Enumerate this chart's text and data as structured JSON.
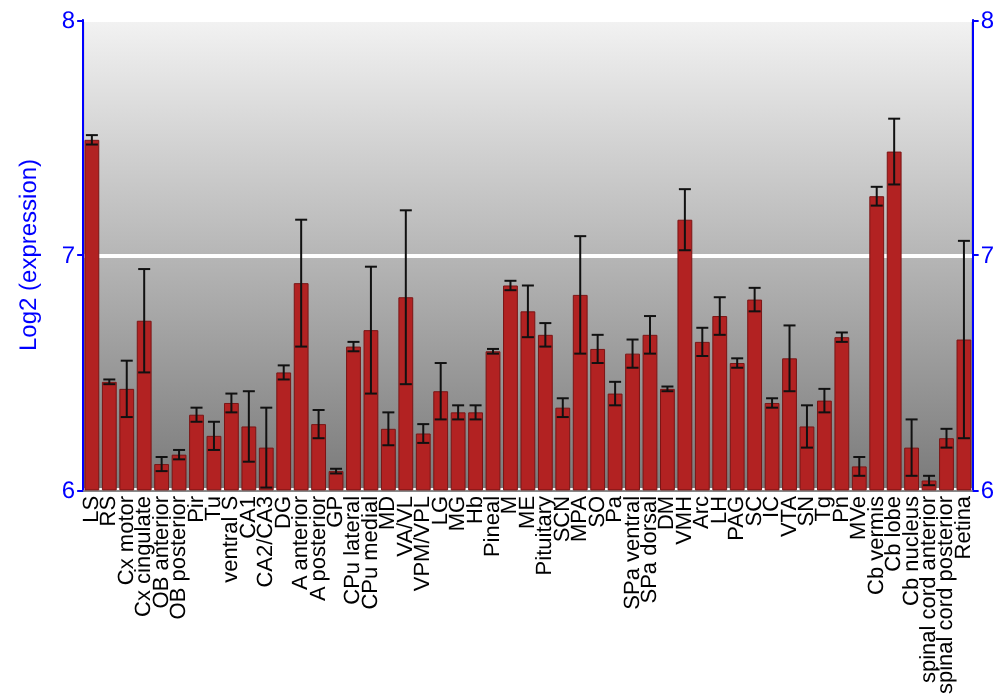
{
  "chart_data": {
    "type": "bar",
    "ylabel": "Log2 (expression)",
    "categories": [
      "LS",
      "RS",
      "Cx motor",
      "Cx cingulate",
      "OB anterior",
      "OB posterior",
      "Pir",
      "Tu",
      "ventral S",
      "CA1",
      "CA2/CA3",
      "DG",
      "A anterior",
      "A posterior",
      "GP",
      "CPu lateral",
      "CPu medial",
      "MD",
      "VA/VL",
      "VPM/VPL",
      "LG",
      "MG",
      "Hb",
      "Pineal",
      "M",
      "ME",
      "Pituitary",
      "SCN",
      "MPA",
      "SO",
      "Pa",
      "SPa ventral",
      "SPa dorsal",
      "DM",
      "VMH",
      "Arc",
      "LH",
      "PAG",
      "SC",
      "IC",
      "VTA",
      "SN",
      "Tg",
      "Pn",
      "MVe",
      "Cb vermis",
      "Cb lobe",
      "Cb nucleus",
      "spinal cord anterior",
      "spinal cord posterior",
      "Retina"
    ],
    "values": [
      7.49,
      6.46,
      6.43,
      6.72,
      6.11,
      6.15,
      6.32,
      6.23,
      6.37,
      6.27,
      6.18,
      6.5,
      6.88,
      6.28,
      6.08,
      6.61,
      6.68,
      6.26,
      6.82,
      6.24,
      6.42,
      6.33,
      6.33,
      6.59,
      6.87,
      6.76,
      6.66,
      6.35,
      6.83,
      6.6,
      6.41,
      6.58,
      6.66,
      6.43,
      7.15,
      6.63,
      6.74,
      6.54,
      6.81,
      6.37,
      6.56,
      6.27,
      6.38,
      6.65,
      6.1,
      7.25,
      7.44,
      6.18,
      6.04,
      6.22,
      6.64
    ],
    "errors": [
      0.02,
      0.01,
      0.12,
      0.22,
      0.03,
      0.02,
      0.03,
      0.06,
      0.04,
      0.15,
      0.17,
      0.03,
      0.27,
      0.06,
      0.01,
      0.02,
      0.27,
      0.07,
      0.37,
      0.04,
      0.12,
      0.03,
      0.03,
      0.01,
      0.02,
      0.11,
      0.05,
      0.04,
      0.25,
      0.06,
      0.05,
      0.06,
      0.08,
      0.01,
      0.13,
      0.06,
      0.08,
      0.02,
      0.05,
      0.02,
      0.14,
      0.09,
      0.05,
      0.02,
      0.04,
      0.04,
      0.14,
      0.12,
      0.02,
      0.04,
      0.42
    ],
    "color": "#b22222",
    "ylim": [
      6,
      8
    ],
    "yticks": [
      6,
      7,
      8
    ],
    "y2lim": [
      6,
      8
    ],
    "y2ticks": [
      6,
      7,
      8
    ],
    "grid": "y"
  }
}
